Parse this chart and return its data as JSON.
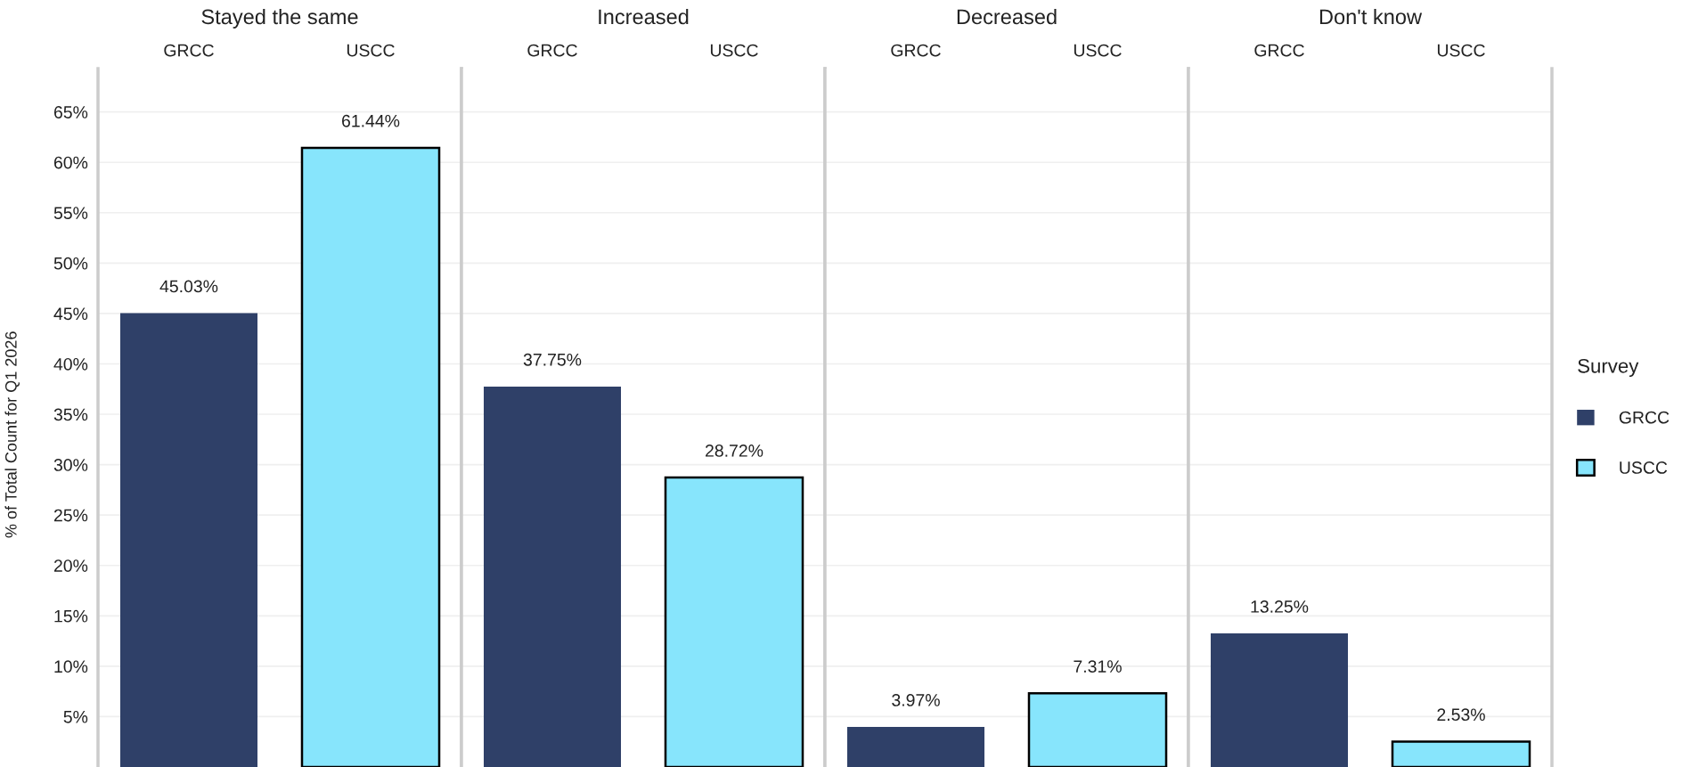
{
  "chart_data": [
    {
      "type": "bar",
      "title": "Stayed the same",
      "ylabel": "% of Total Count for Q1 2026",
      "categories": [
        "GRCC",
        "USCC"
      ],
      "values": [
        45.03,
        61.44
      ],
      "colors": [
        "#2f4068",
        "#87e5fc"
      ],
      "value_labels": [
        "45.03%",
        "61.44%"
      ],
      "ylim": [
        0,
        69.3
      ],
      "yticks": [
        {
          "value": 5,
          "label": "5%"
        },
        {
          "value": 10,
          "label": "10%"
        },
        {
          "value": 15,
          "label": "15%"
        },
        {
          "value": 20,
          "label": "20%"
        },
        {
          "value": 25,
          "label": "25%"
        },
        {
          "value": 30,
          "label": "30%"
        },
        {
          "value": 35,
          "label": "35%"
        },
        {
          "value": 40,
          "label": "40%"
        },
        {
          "value": 45,
          "label": "45%"
        },
        {
          "value": 50,
          "label": "50%"
        },
        {
          "value": 55,
          "label": "55%"
        },
        {
          "value": 60,
          "label": "60%"
        },
        {
          "value": 65,
          "label": "65%"
        }
      ],
      "grid": "y"
    },
    {
      "type": "bar",
      "title": "Increased",
      "categories": [
        "GRCC",
        "USCC"
      ],
      "values": [
        37.75,
        28.72
      ],
      "colors": [
        "#2f4068",
        "#87e5fc"
      ],
      "value_labels": [
        "37.75%",
        "28.72%"
      ],
      "ylim": [
        0,
        69.3
      ],
      "yticks": [
        {
          "value": 5,
          "label": null
        },
        {
          "value": 10,
          "label": null
        },
        {
          "value": 15,
          "label": null
        },
        {
          "value": 20,
          "label": null
        },
        {
          "value": 25,
          "label": null
        },
        {
          "value": 30,
          "label": null
        },
        {
          "value": 35,
          "label": null
        },
        {
          "value": 40,
          "label": null
        },
        {
          "value": 45,
          "label": null
        },
        {
          "value": 50,
          "label": null
        },
        {
          "value": 55,
          "label": null
        },
        {
          "value": 60,
          "label": null
        },
        {
          "value": 65,
          "label": null
        }
      ],
      "grid": "y",
      "tick_labels": "x"
    },
    {
      "type": "bar",
      "title": "Decreased",
      "categories": [
        "GRCC",
        "USCC"
      ],
      "values": [
        3.97,
        7.31
      ],
      "colors": [
        "#2f4068",
        "#87e5fc"
      ],
      "value_labels": [
        "3.97%",
        "7.31%"
      ],
      "ylim": [
        0,
        69.3
      ],
      "yticks": [
        {
          "value": 5,
          "label": null
        },
        {
          "value": 10,
          "label": null
        },
        {
          "value": 15,
          "label": null
        },
        {
          "value": 20,
          "label": null
        },
        {
          "value": 25,
          "label": null
        },
        {
          "value": 30,
          "label": null
        },
        {
          "value": 35,
          "label": null
        },
        {
          "value": 40,
          "label": null
        },
        {
          "value": 45,
          "label": null
        },
        {
          "value": 50,
          "label": null
        },
        {
          "value": 55,
          "label": null
        },
        {
          "value": 60,
          "label": null
        },
        {
          "value": 65,
          "label": null
        }
      ],
      "grid": "y",
      "tick_labels": "x"
    },
    {
      "type": "bar",
      "title": "Don't know",
      "categories": [
        "GRCC",
        "USCC"
      ],
      "series": [
        {
          "name": "GRCC",
          "color": "#2f4068",
          "values": [
            13.25,
            null
          ],
          "value_labels": [
            "13.25%",
            null
          ]
        },
        {
          "name": "USCC",
          "color": "#87e5fc",
          "values": [
            null,
            2.53
          ],
          "value_labels": [
            null,
            "2.53%"
          ]
        }
      ],
      "ylim": [
        0,
        69.3
      ],
      "yticks": [
        {
          "value": 5,
          "label": null
        },
        {
          "value": 10,
          "label": null
        },
        {
          "value": 15,
          "label": null
        },
        {
          "value": 20,
          "label": null
        },
        {
          "value": 25,
          "label": null
        },
        {
          "value": 30,
          "label": null
        },
        {
          "value": 35,
          "label": null
        },
        {
          "value": 40,
          "label": null
        },
        {
          "value": 45,
          "label": null
        },
        {
          "value": 50,
          "label": null
        },
        {
          "value": 55,
          "label": null
        },
        {
          "value": 60,
          "label": null
        },
        {
          "value": 65,
          "label": null
        }
      ],
      "grid": "y",
      "tick_labels": "x",
      "legend": "right",
      "legend_title": "Survey"
    }
  ]
}
